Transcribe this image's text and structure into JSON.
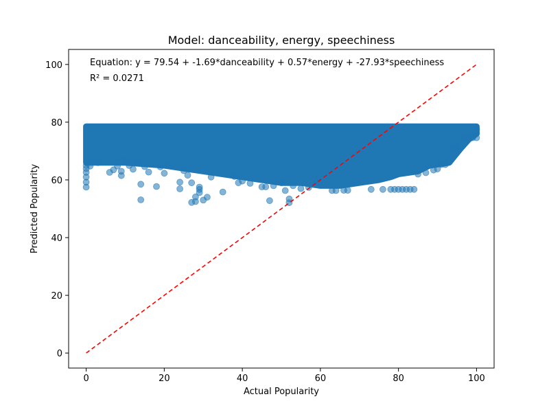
{
  "colors": {
    "points": "#1f77b4",
    "reference_line": "#ff0000",
    "axes": "#000000",
    "background": "#ffffff"
  },
  "chart_data": {
    "type": "scatter",
    "title": "Model: danceability, energy, speechiness",
    "xlabel": "Actual Popularity",
    "ylabel": "Predicted Popularity",
    "xlim": [
      -4.5,
      104.5
    ],
    "ylim": [
      -5.2,
      105.2
    ],
    "xticks": [
      0,
      20,
      40,
      60,
      80,
      100
    ],
    "yticks": [
      0,
      20,
      40,
      60,
      80,
      100
    ],
    "grid": false,
    "annotations": [
      "Equation: y = 79.54 + -1.69*danceability + 0.57*energy + -27.93*speechiness",
      "R² = 0.0271"
    ],
    "reference_line": {
      "style": "dashed",
      "points": [
        [
          0,
          0
        ],
        [
          100,
          100
        ]
      ]
    },
    "dense_band": {
      "description_free_extent": true,
      "upper_edge": [
        [
          0,
          78.5
        ],
        [
          100,
          78.5
        ]
      ],
      "lower_edge": [
        [
          0,
          66
        ],
        [
          10,
          66
        ],
        [
          20,
          65
        ],
        [
          30,
          63
        ],
        [
          40,
          61
        ],
        [
          45,
          60
        ],
        [
          50,
          59
        ],
        [
          55,
          59
        ],
        [
          60,
          58
        ],
        [
          65,
          58
        ],
        [
          70,
          59
        ],
        [
          75,
          60
        ],
        [
          78,
          61
        ],
        [
          80,
          62
        ],
        [
          85,
          63
        ],
        [
          88,
          65
        ],
        [
          93,
          66
        ],
        [
          96,
          71
        ],
        [
          98,
          74
        ],
        [
          100,
          76
        ]
      ]
    },
    "series": [
      {
        "points": [
          [
            0,
            57.5
          ],
          [
            0,
            59.2
          ],
          [
            0,
            61.0
          ],
          [
            0,
            62.6
          ],
          [
            0,
            63.9
          ],
          [
            0,
            65.0
          ],
          [
            1,
            64.8
          ],
          [
            1,
            66.2
          ],
          [
            2,
            66.5
          ],
          [
            3,
            66.0
          ],
          [
            6,
            62.6
          ],
          [
            7,
            63.5
          ],
          [
            8,
            64.8
          ],
          [
            9,
            61.5
          ],
          [
            9,
            63.0
          ],
          [
            10,
            66.6
          ],
          [
            11,
            65.0
          ],
          [
            12,
            63.7
          ],
          [
            13,
            65.8
          ],
          [
            14,
            53.1
          ],
          [
            14,
            58.5
          ],
          [
            15,
            64.6
          ],
          [
            16,
            62.7
          ],
          [
            18,
            57.7
          ],
          [
            19,
            64.5
          ],
          [
            20,
            62.3
          ],
          [
            21,
            65.3
          ],
          [
            24,
            56.9
          ],
          [
            24,
            59.2
          ],
          [
            25,
            63.2
          ],
          [
            26,
            61.6
          ],
          [
            27,
            52.2
          ],
          [
            27,
            59.0
          ],
          [
            28,
            52.5
          ],
          [
            28,
            54.1
          ],
          [
            29,
            55.6
          ],
          [
            29,
            56.7
          ],
          [
            29,
            57.5
          ],
          [
            30,
            53.0
          ],
          [
            31,
            54.0
          ],
          [
            32,
            61.0
          ],
          [
            35,
            55.8
          ],
          [
            38,
            61.2
          ],
          [
            39,
            59.0
          ],
          [
            40,
            59.6
          ],
          [
            42,
            58.8
          ],
          [
            45,
            57.6
          ],
          [
            46,
            57.6
          ],
          [
            47,
            52.8
          ],
          [
            48,
            58.0
          ],
          [
            50,
            59.0
          ],
          [
            51,
            56.3
          ],
          [
            52,
            52.1
          ],
          [
            52,
            53.4
          ],
          [
            53,
            58.0
          ],
          [
            55,
            57.0
          ],
          [
            57,
            57.4
          ],
          [
            59,
            59.0
          ],
          [
            63,
            56.3
          ],
          [
            64,
            56.3
          ],
          [
            66,
            56.4
          ],
          [
            67,
            56.4
          ],
          [
            73,
            56.7
          ],
          [
            76,
            56.7
          ],
          [
            78,
            56.7
          ],
          [
            79,
            56.7
          ],
          [
            80,
            56.7
          ],
          [
            81,
            56.7
          ],
          [
            82,
            56.7
          ],
          [
            83,
            56.7
          ],
          [
            84,
            56.7
          ],
          [
            85,
            62.0
          ],
          [
            87,
            62.5
          ],
          [
            89,
            63.4
          ],
          [
            90,
            63.8
          ],
          [
            91,
            65.3
          ],
          [
            92,
            65.3
          ],
          [
            94,
            71.3
          ],
          [
            95,
            71.4
          ],
          [
            97,
            74.5
          ],
          [
            98,
            74.5
          ],
          [
            99,
            74.6
          ],
          [
            100,
            74.6
          ],
          [
            100,
            76.2
          ],
          [
            100,
            77.5
          ]
        ]
      }
    ]
  }
}
